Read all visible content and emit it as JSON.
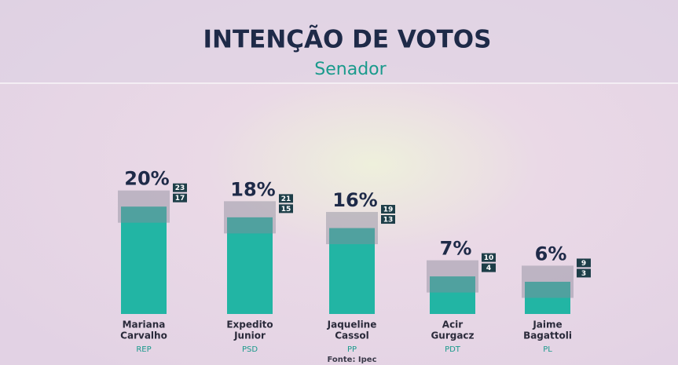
{
  "chart_data": {
    "type": "bar",
    "title": "INTENÇÃO DE VOTOS",
    "subtitle": "Senador",
    "categories": [
      [
        "Mariana",
        "Carvalho"
      ],
      [
        "Expedito",
        "Junior"
      ],
      [
        "Jaqueline",
        "Cassol"
      ],
      [
        "Acir",
        "Gurgacz"
      ],
      [
        "Jaime",
        "Bagattoli"
      ]
    ],
    "parties": [
      "REP",
      "PSD",
      "PP",
      "PDT",
      "PL"
    ],
    "values": [
      20,
      18,
      16,
      7,
      6
    ],
    "value_labels": [
      "20%",
      "18%",
      "16%",
      "7%",
      "6%"
    ],
    "upper": [
      23,
      21,
      19,
      10,
      9
    ],
    "lower": [
      17,
      15,
      13,
      4,
      3
    ],
    "color": "#22b5a4",
    "ylim": [
      0,
      25
    ],
    "source": "Fonte: Ipec"
  }
}
